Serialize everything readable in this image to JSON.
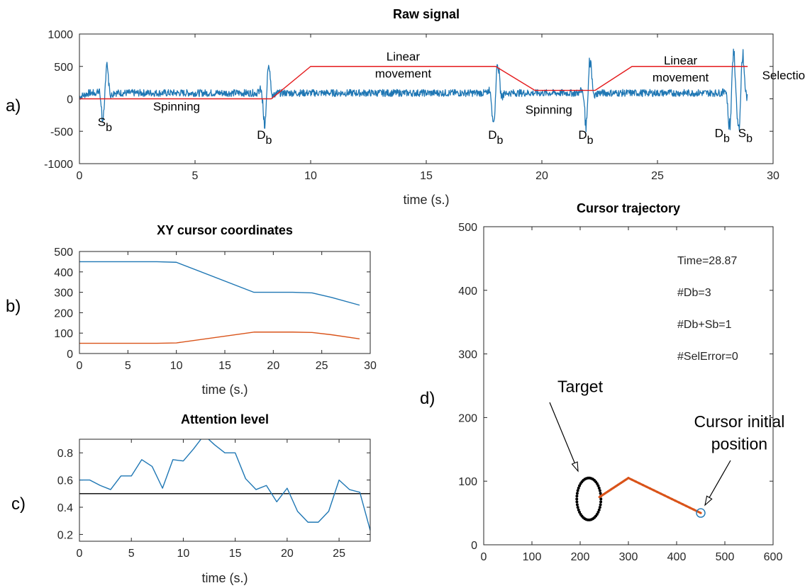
{
  "panel_labels": [
    "a)",
    "b)",
    "c)",
    "d)"
  ],
  "colors": {
    "blue": "#1f77b4",
    "red": "#e41a1c",
    "orange": "#d95319",
    "black": "#000000",
    "axes": "#262626"
  },
  "chart_data": [
    {
      "type": "line",
      "title": "Raw signal",
      "xlabel": "time (s.)",
      "ylabel": "",
      "xlim": [
        0,
        30
      ],
      "ylim": [
        -1000,
        1000
      ],
      "xticks": [
        0,
        5,
        10,
        15,
        20,
        25,
        30
      ],
      "yticks": [
        -1000,
        -500,
        0,
        500,
        1000
      ],
      "grid": false,
      "series": [
        {
          "color": "#e41a1c",
          "x": [
            0,
            8.3,
            10,
            18,
            19.7,
            22.3,
            23.9,
            28.9
          ],
          "values": [
            0,
            0,
            500,
            500,
            130,
            130,
            500,
            500
          ]
        },
        {
          "color": "#1f77b4",
          "noise_amplitude": 55,
          "baseline": 90,
          "x_end": 28.9,
          "blinks": [
            {
              "t": 1.1,
              "amp": 550
            },
            {
              "t": 8.1,
              "amp": 650
            },
            {
              "t": 18.0,
              "amp": 650
            },
            {
              "t": 22.0,
              "amp": 650
            },
            {
              "t": 28.2,
              "amp": 750
            },
            {
              "t": 28.6,
              "amp": 750
            }
          ]
        }
      ],
      "annotations": [
        {
          "text": "S",
          "sub": "b",
          "x": 1.1,
          "y": -420
        },
        {
          "text": "Spinning",
          "x": 4.2,
          "y": -180
        },
        {
          "text": "D",
          "sub": "b",
          "x": 8.0,
          "y": -620
        },
        {
          "text": "Linear",
          "x": 14.0,
          "y": 590
        },
        {
          "text": "movement",
          "x": 14.0,
          "y": 330
        },
        {
          "text": "D",
          "sub": "b",
          "x": 18.0,
          "y": -620
        },
        {
          "text": "Spinning",
          "x": 20.3,
          "y": -230
        },
        {
          "text": "D",
          "sub": "b",
          "x": 21.9,
          "y": -620
        },
        {
          "text": "Linear",
          "x": 26.0,
          "y": 530
        },
        {
          "text": "movement",
          "x": 26.0,
          "y": 270
        },
        {
          "text": "Selection",
          "x": 30.6,
          "y": 300
        },
        {
          "text": "D",
          "sub": "b",
          "x": 27.8,
          "y": -590
        },
        {
          "text": "S",
          "sub": "b",
          "x": 28.8,
          "y": -590
        }
      ]
    },
    {
      "type": "line",
      "title": "XY cursor coordinates",
      "xlabel": "time (s.)",
      "ylabel": "",
      "xlim": [
        0,
        30
      ],
      "ylim": [
        0,
        500
      ],
      "xticks": [
        0,
        5,
        10,
        15,
        20,
        25,
        30
      ],
      "yticks": [
        0,
        100,
        200,
        300,
        400,
        500
      ],
      "grid": false,
      "series": [
        {
          "color": "#1f77b4",
          "x": [
            0,
            8,
            10,
            18,
            22,
            24,
            26,
            28.9
          ],
          "values": [
            450,
            450,
            447,
            300,
            300,
            297,
            275,
            237
          ]
        },
        {
          "color": "#d95319",
          "x": [
            0,
            8,
            10,
            18,
            22,
            24,
            26,
            28.9
          ],
          "values": [
            50,
            50,
            52,
            105,
            105,
            103,
            92,
            72
          ]
        }
      ]
    },
    {
      "type": "line",
      "title": "Attention level",
      "xlabel": "time (s.)",
      "ylabel": "",
      "xlim": [
        0,
        28
      ],
      "ylim": [
        0.15,
        0.9
      ],
      "xticks": [
        0,
        5,
        10,
        15,
        20,
        25
      ],
      "yticks": [
        0.2,
        0.4,
        0.6,
        0.8
      ],
      "grid": false,
      "threshold": 0.5,
      "series": [
        {
          "color": "#1f77b4",
          "x": [
            0,
            1,
            2,
            3,
            4,
            5,
            6,
            7,
            8,
            9,
            10,
            11,
            12,
            13,
            14,
            15,
            16,
            17,
            18,
            19,
            20,
            21,
            22,
            23,
            24,
            25,
            26,
            27,
            28
          ],
          "values": [
            0.6,
            0.6,
            0.56,
            0.53,
            0.63,
            0.63,
            0.75,
            0.7,
            0.54,
            0.75,
            0.74,
            0.83,
            0.93,
            0.86,
            0.8,
            0.8,
            0.61,
            0.53,
            0.56,
            0.44,
            0.54,
            0.37,
            0.29,
            0.29,
            0.37,
            0.6,
            0.53,
            0.51,
            0.23
          ]
        }
      ]
    },
    {
      "type": "scatter",
      "title": "Cursor trajectory",
      "xlabel": "",
      "ylabel": "",
      "xlim": [
        0,
        600
      ],
      "ylim": [
        0,
        500
      ],
      "xticks": [
        0,
        100,
        200,
        300,
        400,
        500,
        600
      ],
      "yticks": [
        0,
        100,
        200,
        300,
        400,
        500
      ],
      "grid": false,
      "target": {
        "cx": 218,
        "cy": 72,
        "rx": 25,
        "ry": 33,
        "n_points": 46
      },
      "trajectory": {
        "color": "#d95319",
        "x": [
          240,
          300,
          450
        ],
        "y": [
          75,
          105,
          50
        ]
      },
      "initial_position": {
        "x": 450,
        "y": 50,
        "color": "#1f77b4"
      },
      "stats": [
        "Time=28.87",
        "#Db=3",
        "#Db+Sb=1",
        "#SelError=0"
      ],
      "annotations": [
        {
          "text": "Target",
          "x": 200,
          "y": 240
        },
        {
          "text": "Cursor initial",
          "x": 530,
          "y": 185
        },
        {
          "text": "position",
          "x": 530,
          "y": 150
        }
      ]
    }
  ]
}
